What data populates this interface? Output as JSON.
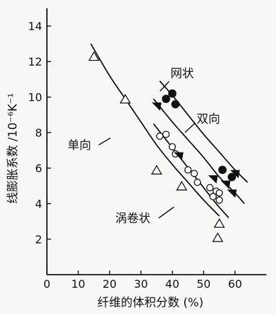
{
  "chart_data": {
    "type": "scatter",
    "title": "",
    "xlabel": "纤维的体积分数 (%)",
    "ylabel": "线膨胀系数 /10⁻⁶K⁻¹",
    "xlim": [
      0,
      70
    ],
    "ylim": [
      0,
      15
    ],
    "x_ticks": [
      "0",
      "10",
      "20",
      "30",
      "40",
      "50",
      "60"
    ],
    "y_ticks": [
      "2",
      "4",
      "6",
      "8",
      "10",
      "12",
      "14"
    ],
    "grid": false,
    "legend": "none",
    "series": [
      {
        "name": "单向",
        "marker": "open-triangle-up",
        "points": [
          [
            15,
            12.3
          ],
          [
            25,
            9.9
          ],
          [
            35,
            5.9
          ],
          [
            43,
            5.0
          ],
          [
            55,
            2.9
          ],
          [
            54.5,
            2.1
          ]
        ],
        "curve": [
          [
            14,
            13.0
          ],
          [
            20,
            11.2
          ],
          [
            25,
            9.9
          ],
          [
            30,
            8.6
          ],
          [
            35,
            7.3
          ],
          [
            40,
            6.2
          ],
          [
            45,
            5.2
          ],
          [
            50,
            4.2
          ],
          [
            55,
            3.3
          ]
        ]
      },
      {
        "name": "涡卷状",
        "marker": "open-circle",
        "points": [
          [
            36,
            7.8
          ],
          [
            38,
            7.9
          ],
          [
            40,
            7.2
          ],
          [
            41,
            6.8
          ],
          [
            45,
            5.9
          ],
          [
            47,
            5.7
          ],
          [
            48,
            5.2
          ],
          [
            52,
            4.9
          ],
          [
            54,
            4.7
          ],
          [
            55,
            4.6
          ],
          [
            53,
            4.4
          ],
          [
            55,
            4.2
          ]
        ],
        "curve": [
          [
            34,
            8.5
          ],
          [
            38,
            7.6
          ],
          [
            42,
            6.7
          ],
          [
            46,
            5.8
          ],
          [
            50,
            4.9
          ],
          [
            54,
            4.0
          ],
          [
            58,
            3.2
          ]
        ]
      },
      {
        "name": "双向",
        "marker": "filled-triangle",
        "points": [
          [
            35,
            9.5
          ],
          [
            42,
            6.7
          ],
          [
            53,
            5.4
          ],
          [
            57,
            5.1
          ],
          [
            59,
            4.6
          ],
          [
            60,
            5.7
          ]
        ],
        "curve": [
          [
            34,
            9.9
          ],
          [
            40,
            8.6
          ],
          [
            45,
            7.6
          ],
          [
            50,
            6.6
          ],
          [
            55,
            5.5
          ],
          [
            60,
            4.6
          ],
          [
            63,
            4.0
          ]
        ]
      },
      {
        "name": "网状",
        "marker": "filled-circle",
        "points": [
          [
            38,
            9.9
          ],
          [
            40,
            10.2
          ],
          [
            41,
            9.6
          ],
          [
            56,
            5.9
          ],
          [
            59,
            5.5
          ]
        ],
        "curve": [
          [
            36,
            10.9
          ],
          [
            40,
            10.1
          ],
          [
            45,
            9.0
          ],
          [
            50,
            7.9
          ],
          [
            55,
            6.9
          ],
          [
            60,
            5.9
          ],
          [
            64,
            5.2
          ]
        ]
      }
    ],
    "curve_labels": [
      {
        "text": "网状",
        "series": "网状"
      },
      {
        "text": "双向",
        "series": "双向"
      },
      {
        "text": "单向",
        "series": "单向"
      },
      {
        "text": "涡卷状",
        "series": "涡卷状"
      }
    ]
  }
}
